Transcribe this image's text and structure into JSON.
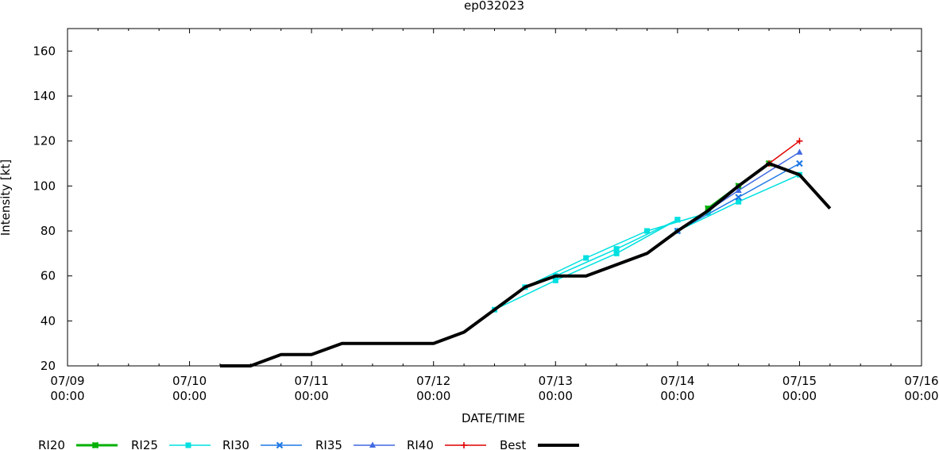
{
  "chart_data": {
    "type": "line",
    "title": "ep032023",
    "xlabel": "DATE/TIME",
    "ylabel": "Intensity [kt]",
    "xlim": [
      "07/09 00:00",
      "07/16 00:00"
    ],
    "ylim": [
      20,
      170
    ],
    "y_ticks": [
      "20",
      "40",
      "60",
      "80",
      "100",
      "120",
      "140",
      "160"
    ],
    "x_ticks": [
      {
        "date": "07/09",
        "time": "00:00"
      },
      {
        "date": "07/10",
        "time": "00:00"
      },
      {
        "date": "07/11",
        "time": "00:00"
      },
      {
        "date": "07/12",
        "time": "00:00"
      },
      {
        "date": "07/13",
        "time": "00:00"
      },
      {
        "date": "07/14",
        "time": "00:00"
      },
      {
        "date": "07/15",
        "time": "00:00"
      },
      {
        "date": "07/16",
        "time": "00:00"
      }
    ],
    "grid": false,
    "legend_position": "bottom",
    "series": [
      {
        "name": "RI20",
        "color": "#00b000",
        "marker": "x-square",
        "line_width": "thick",
        "segments": [
          [
            {
              "x": "07/14 06:00",
              "y": 90
            },
            {
              "x": "07/14 12:00",
              "y": 100
            },
            {
              "x": "07/14 18:00",
              "y": 110
            }
          ]
        ]
      },
      {
        "name": "RI25",
        "color": "#00e0e0",
        "marker": "square",
        "line_width": "thin",
        "segments": [
          [
            {
              "x": "07/12 12:00",
              "y": 45
            },
            {
              "x": "07/13 00:00",
              "y": 58
            },
            {
              "x": "07/13 12:00",
              "y": 70
            },
            {
              "x": "07/14 00:00",
              "y": 85
            }
          ],
          [
            {
              "x": "07/12 18:00",
              "y": 55
            },
            {
              "x": "07/13 06:00",
              "y": 68
            },
            {
              "x": "07/13 18:00",
              "y": 80
            }
          ],
          [
            {
              "x": "07/13 00:00",
              "y": 60
            },
            {
              "x": "07/13 12:00",
              "y": 72
            },
            {
              "x": "07/14 00:00",
              "y": 85
            }
          ],
          [
            {
              "x": "07/13 18:00",
              "y": 80
            },
            {
              "x": "07/14 06:00",
              "y": 88
            }
          ],
          [
            {
              "x": "07/14 00:00",
              "y": 80
            },
            {
              "x": "07/14 12:00",
              "y": 93
            },
            {
              "x": "07/15 00:00",
              "y": 105
            }
          ]
        ]
      },
      {
        "name": "RI30",
        "color": "#1e78e6",
        "marker": "x",
        "line_width": "thin",
        "segments": [
          [
            {
              "x": "07/14 00:00",
              "y": 80
            },
            {
              "x": "07/14 12:00",
              "y": 95
            },
            {
              "x": "07/15 00:00",
              "y": 110
            }
          ]
        ]
      },
      {
        "name": "RI35",
        "color": "#4169e1",
        "marker": "triangle",
        "line_width": "thin",
        "segments": [
          [
            {
              "x": "07/14 00:00",
              "y": 80
            },
            {
              "x": "07/14 12:00",
              "y": 98
            },
            {
              "x": "07/15 00:00",
              "y": 115
            }
          ]
        ]
      },
      {
        "name": "RI40",
        "color": "#e00000",
        "marker": "plus",
        "line_width": "thin",
        "segments": [
          [
            {
              "x": "07/14 18:00",
              "y": 110
            },
            {
              "x": "07/15 00:00",
              "y": 120
            }
          ]
        ]
      },
      {
        "name": "Best",
        "color": "#000000",
        "marker": "none",
        "line_width": "heavy",
        "segments": [
          [
            {
              "x": "07/10 06:00",
              "y": 20
            },
            {
              "x": "07/10 12:00",
              "y": 20
            },
            {
              "x": "07/10 18:00",
              "y": 25
            },
            {
              "x": "07/11 00:00",
              "y": 25
            },
            {
              "x": "07/11 06:00",
              "y": 30
            },
            {
              "x": "07/11 12:00",
              "y": 30
            },
            {
              "x": "07/11 18:00",
              "y": 30
            },
            {
              "x": "07/12 00:00",
              "y": 30
            },
            {
              "x": "07/12 06:00",
              "y": 35
            },
            {
              "x": "07/12 12:00",
              "y": 45
            },
            {
              "x": "07/12 18:00",
              "y": 55
            },
            {
              "x": "07/13 00:00",
              "y": 60
            },
            {
              "x": "07/13 06:00",
              "y": 60
            },
            {
              "x": "07/13 12:00",
              "y": 65
            },
            {
              "x": "07/13 18:00",
              "y": 70
            },
            {
              "x": "07/14 00:00",
              "y": 80
            },
            {
              "x": "07/14 06:00",
              "y": 89
            },
            {
              "x": "07/14 12:00",
              "y": 100
            },
            {
              "x": "07/14 18:00",
              "y": 110
            },
            {
              "x": "07/15 00:00",
              "y": 105
            },
            {
              "x": "07/15 06:00",
              "y": 90
            }
          ]
        ]
      }
    ]
  }
}
